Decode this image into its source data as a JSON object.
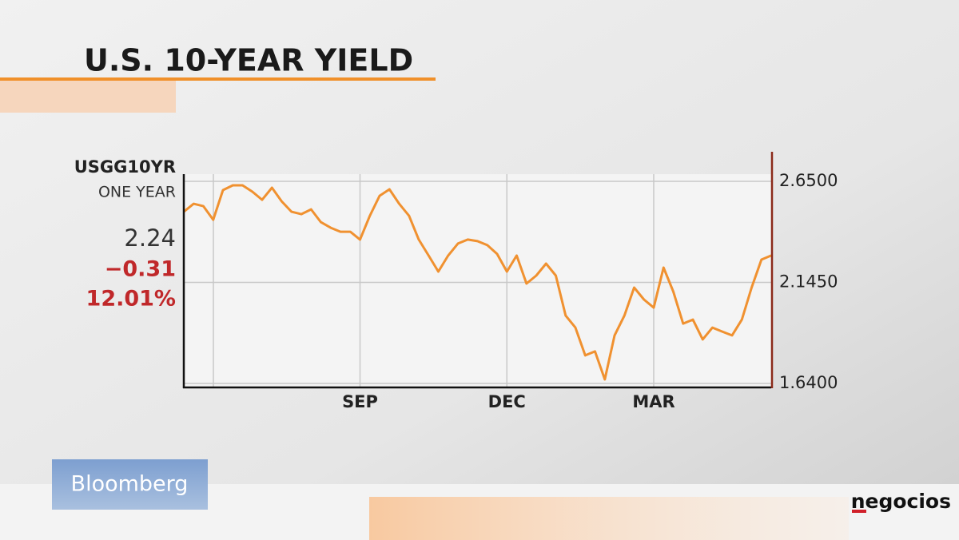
{
  "chart_data": {
    "type": "line",
    "title": "U.S. 10-YEAR YIELD",
    "ticker": "USGG10YR",
    "period": "ONE YEAR",
    "last": "2.24",
    "change": "−0.31",
    "change_pct": "12.01%",
    "categories": [
      null,
      null,
      null,
      null,
      null,
      null,
      null,
      null,
      null,
      null,
      null,
      null,
      null,
      null,
      null,
      null,
      null,
      null,
      "SEP",
      null,
      null,
      null,
      null,
      null,
      null,
      null,
      null,
      null,
      null,
      null,
      null,
      null,
      null,
      "DEC",
      null,
      null,
      null,
      null,
      null,
      null,
      null,
      null,
      null,
      null,
      null,
      null,
      null,
      null,
      "MAR",
      null,
      null,
      null,
      null,
      null,
      null,
      null,
      null,
      null,
      null,
      null,
      null
    ],
    "values": [
      2.498,
      2.538,
      2.526,
      2.458,
      2.606,
      2.63,
      2.63,
      2.598,
      2.558,
      2.618,
      2.55,
      2.498,
      2.486,
      2.51,
      2.446,
      2.418,
      2.398,
      2.398,
      2.359,
      2.478,
      2.578,
      2.61,
      2.538,
      2.478,
      2.359,
      2.279,
      2.199,
      2.279,
      2.339,
      2.359,
      2.351,
      2.331,
      2.287,
      2.199,
      2.279,
      2.139,
      2.179,
      2.239,
      2.179,
      1.979,
      1.919,
      1.78,
      1.8,
      1.66,
      1.88,
      1.979,
      2.119,
      2.059,
      2.019,
      2.219,
      2.099,
      1.939,
      1.959,
      1.86,
      1.919,
      1.899,
      1.88,
      1.959,
      2.119,
      2.259,
      2.279
    ],
    "color": "#f09130",
    "ylim": [
      1.62,
      2.686
    ],
    "yticks": [
      {
        "value": 1.64,
        "label": "1.6400"
      },
      {
        "value": 2.145,
        "label": "2.1450"
      },
      {
        "value": 2.65,
        "label": "2.6500"
      }
    ],
    "grid": true
  },
  "logos": {
    "broadcaster": "Bloomberg",
    "publisher": "negocios"
  }
}
